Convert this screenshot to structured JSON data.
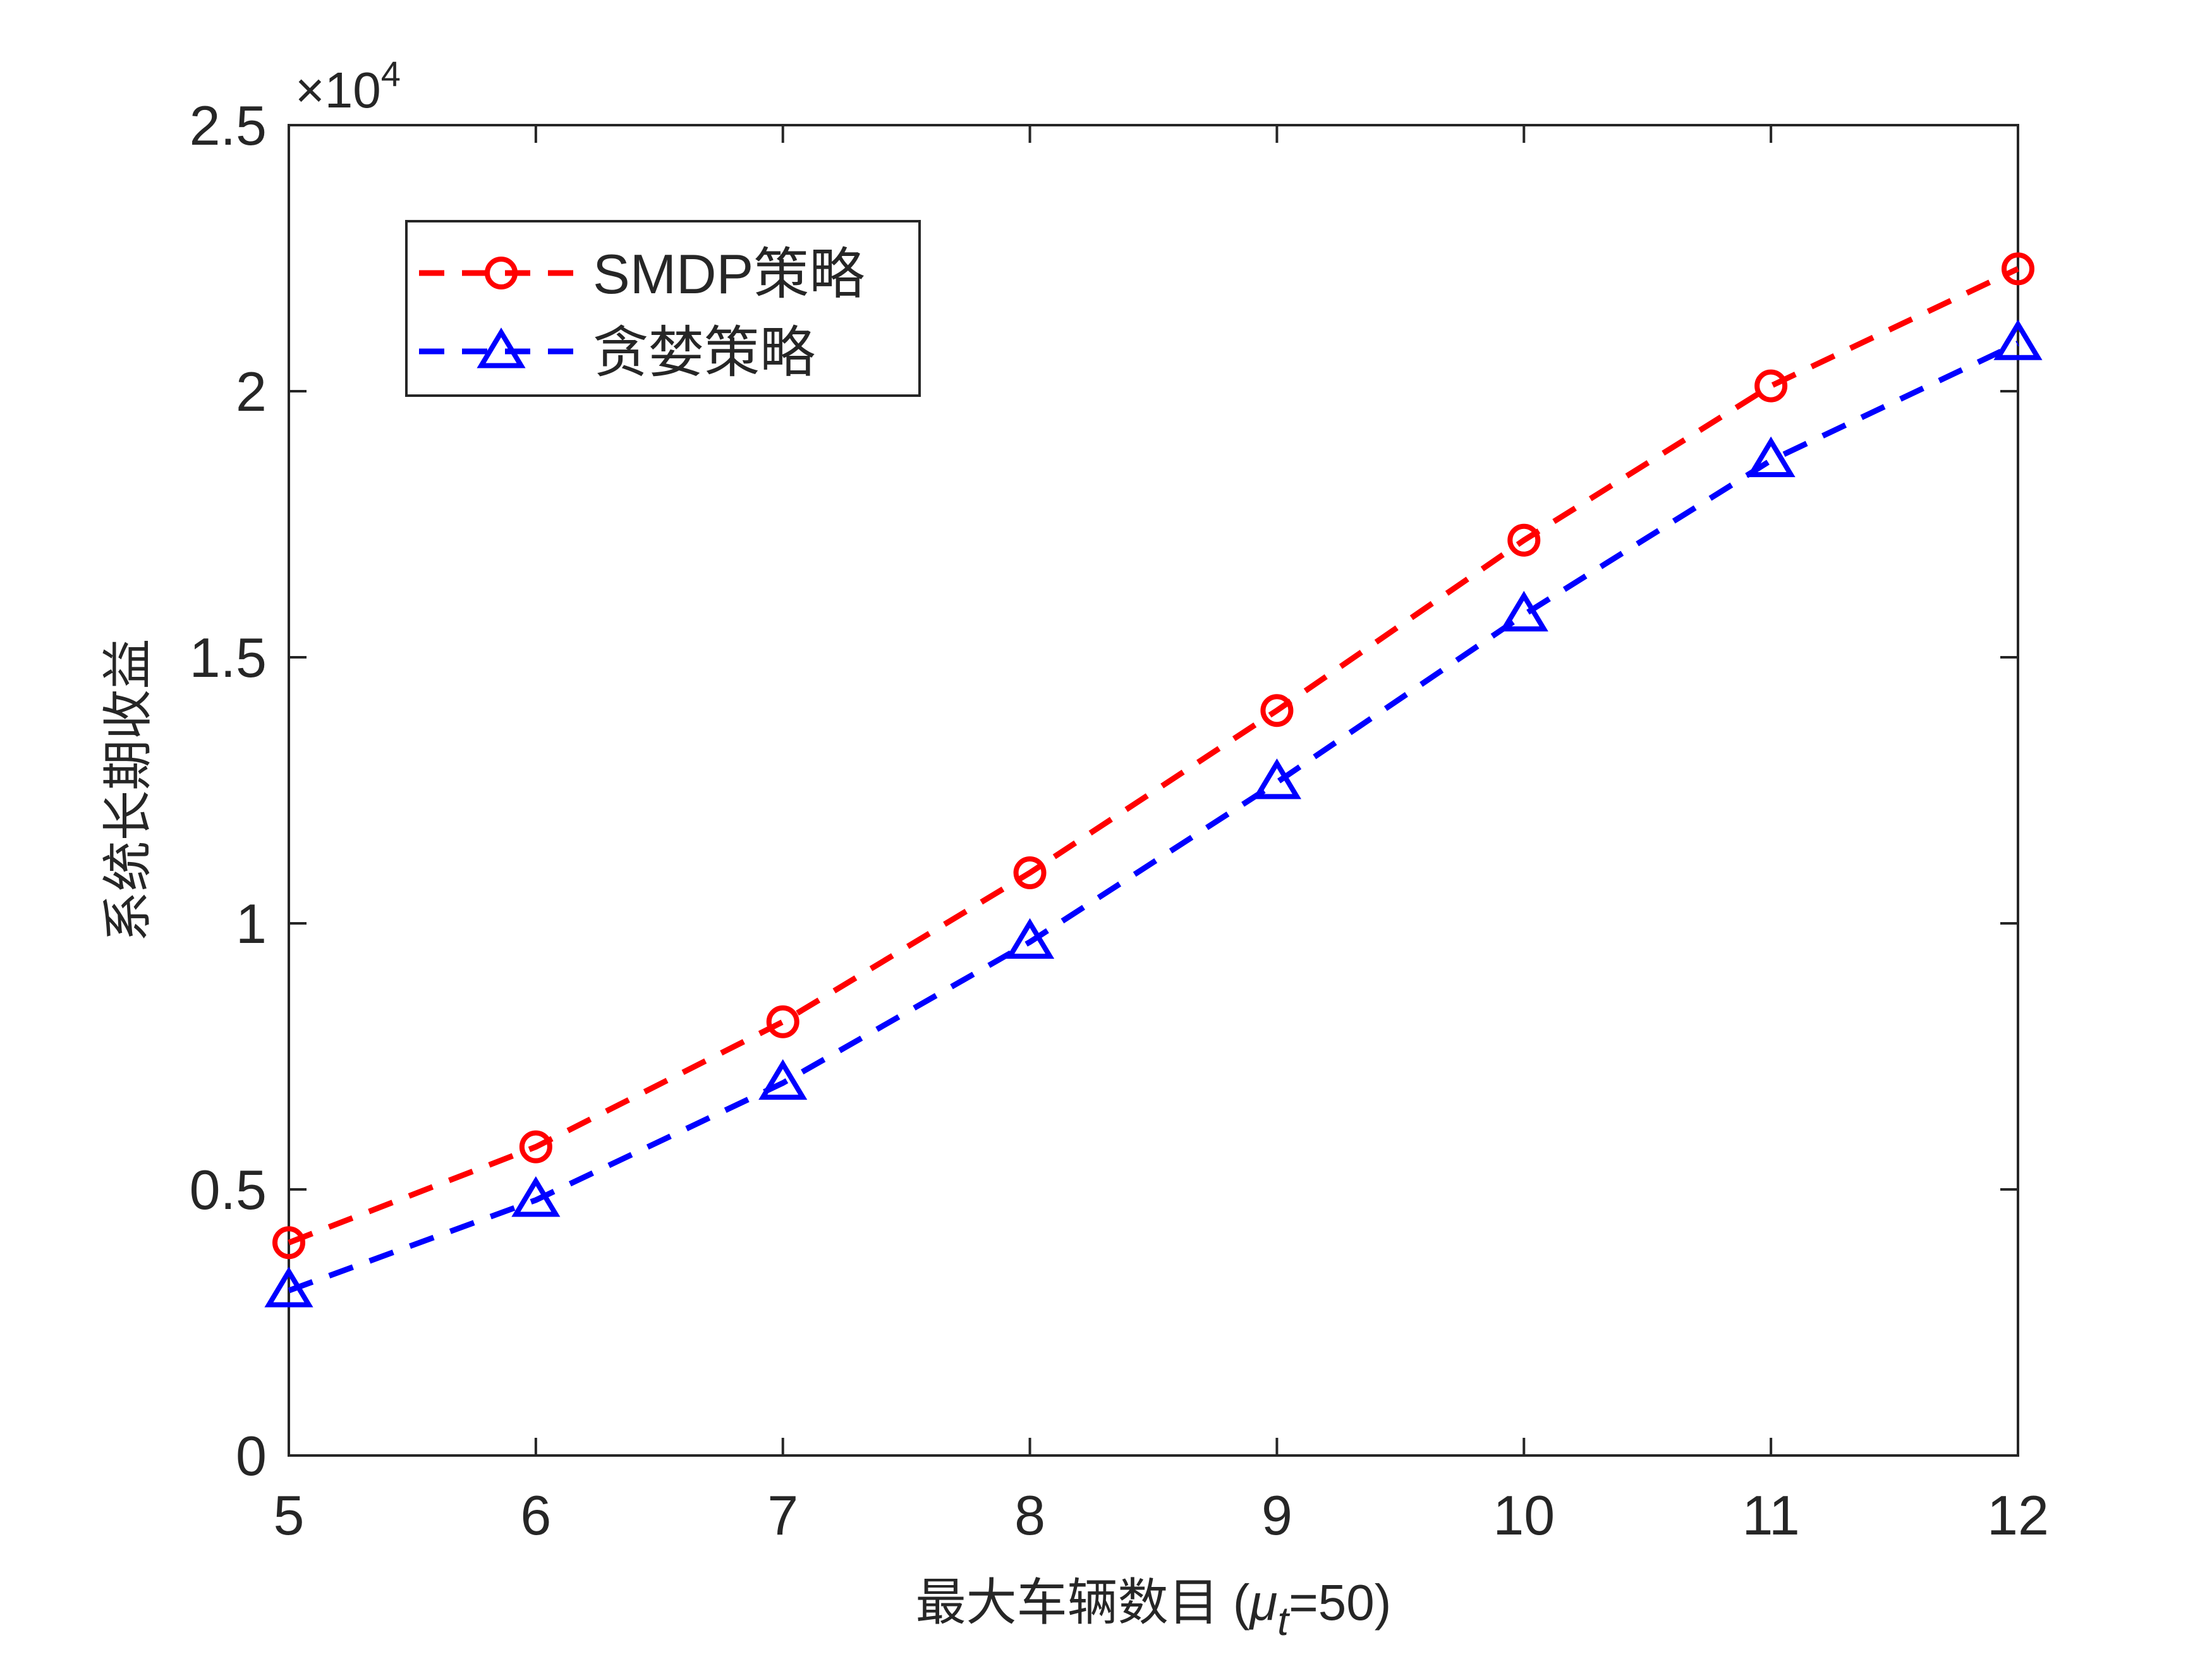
{
  "chart_data": {
    "type": "line",
    "title": "",
    "xlabel": "最大车辆数目 (",
    "xlabel_symbol": "μ",
    "xlabel_subscript": "t",
    "xlabel_suffix": "=50)",
    "ylabel": "系统长期收益",
    "exponent_label": "×10",
    "exponent_power": "4",
    "xlim": [
      5,
      12
    ],
    "ylim": [
      0,
      25000
    ],
    "x_ticks": [
      5,
      6,
      7,
      8,
      9,
      10,
      11,
      12
    ],
    "x_tick_labels": [
      "5",
      "6",
      "7",
      "8",
      "9",
      "10",
      "11",
      "12"
    ],
    "y_ticks": [
      0,
      5000,
      10000,
      15000,
      20000,
      25000
    ],
    "y_tick_labels": [
      "0",
      "0.5",
      "1",
      "1.5",
      "2",
      "2.5"
    ],
    "grid": false,
    "legend_position": "top-left",
    "x": [
      5,
      6,
      7,
      8,
      9,
      10,
      11,
      12
    ],
    "series": [
      {
        "name": "SMDP策略",
        "color": "#ff0000",
        "marker": "circle",
        "line_style": "dashed",
        "values": [
          4000,
          5800,
          8150,
          10950,
          14000,
          17200,
          20100,
          22300
        ]
      },
      {
        "name": "贪婪策略",
        "color": "#0000ff",
        "marker": "triangle",
        "line_style": "dashed",
        "values": [
          3100,
          4800,
          7000,
          9650,
          12650,
          15800,
          18700,
          20900
        ]
      }
    ]
  }
}
